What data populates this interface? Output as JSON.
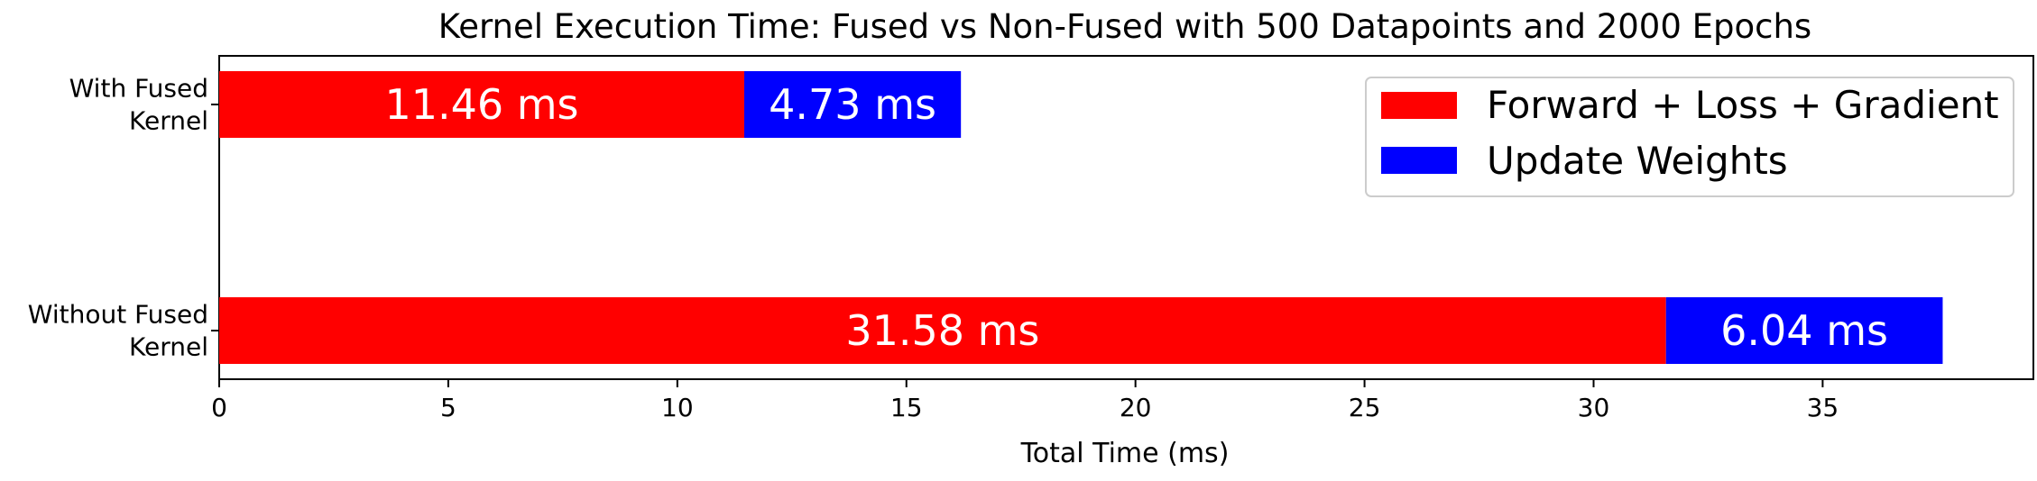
{
  "chart_data": {
    "type": "bar",
    "orientation": "horizontal",
    "stacked": true,
    "title": "Kernel Execution Time: Fused vs Non-Fused with 500 Datapoints and 2000 Epochs",
    "xlabel": "Total Time (ms)",
    "ylabel": "",
    "categories": [
      "With Fused Kernel",
      "Without Fused Kernel"
    ],
    "category_lines": [
      [
        "With Fused",
        "Kernel"
      ],
      [
        "Without Fused",
        "Kernel"
      ]
    ],
    "series": [
      {
        "name": "Forward + Loss + Gradient",
        "color": "#ff0000",
        "values": [
          11.46,
          31.58
        ],
        "labels": [
          "11.46 ms",
          "31.58 ms"
        ]
      },
      {
        "name": "Update Weights",
        "color": "#0000ff",
        "values": [
          4.73,
          6.04
        ],
        "labels": [
          "4.73 ms",
          "6.04 ms"
        ]
      }
    ],
    "xlim": [
      0,
      39.6
    ],
    "xticks": [
      0,
      5,
      10,
      15,
      20,
      25,
      30,
      35
    ],
    "grid": false,
    "legend_position": "top-right"
  }
}
